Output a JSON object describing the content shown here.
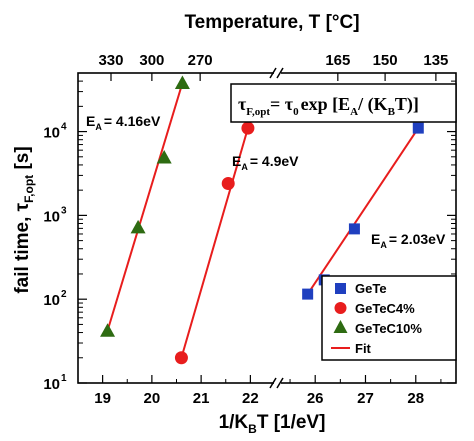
{
  "chart_data": {
    "type": "scatter",
    "title": "",
    "xlabel": "1/KBT [1/eV]",
    "ylabel": "fail time, τF,opt [s]",
    "x2label": "Temperature, T [°C]",
    "yscale": "log",
    "xlim": [
      18.5,
      28.8
    ],
    "ylim": [
      10,
      50000
    ],
    "x_break": [
      22.5,
      25.3
    ],
    "x_ticks": [
      19,
      20,
      21,
      22,
      26,
      27,
      28
    ],
    "x2_ticks": [
      {
        "label": "330",
        "x": 19.17
      },
      {
        "label": "300",
        "x": 20.0
      },
      {
        "label": "270",
        "x": 20.98
      },
      {
        "label": "165",
        "x": 26.45
      },
      {
        "label": "150",
        "x": 27.39
      },
      {
        "label": "135",
        "x": 28.4
      }
    ],
    "y_ticks": [
      {
        "base": "10",
        "exp": "1",
        "value": 10
      },
      {
        "base": "10",
        "exp": "2",
        "value": 100
      },
      {
        "base": "10",
        "exp": "3",
        "value": 1000
      },
      {
        "base": "10",
        "exp": "4",
        "value": 10000
      }
    ],
    "series": [
      {
        "name": "GeTe",
        "marker": "square",
        "color": "#1f3fbf",
        "x": [
          25.85,
          26.18,
          26.78,
          28.05
        ],
        "y": [
          115,
          170,
          690,
          11000
        ]
      },
      {
        "name": "GeTeC4%",
        "marker": "circle",
        "color": "#e81d1d",
        "x": [
          20.6,
          21.55,
          21.95
        ],
        "y": [
          20,
          2400,
          11000
        ]
      },
      {
        "name": "GeTeC10%",
        "marker": "triangle",
        "color": "#2e6b12",
        "x": [
          19.1,
          19.72,
          20.25,
          20.62
        ],
        "y": [
          42,
          720,
          4900,
          38000
        ]
      }
    ],
    "fits": [
      {
        "name": "Fit",
        "x": [
          19.1,
          20.62
        ],
        "y": [
          42,
          38000
        ]
      },
      {
        "name": "Fit",
        "x": [
          20.6,
          21.95
        ],
        "y": [
          20,
          11000
        ]
      },
      {
        "name": "Fit",
        "x": [
          25.85,
          28.05
        ],
        "y": [
          115,
          11000
        ]
      }
    ],
    "fit_color": "#e81d1d",
    "legend": {
      "placement": "bottom-right",
      "entries": [
        "GeTe",
        "GeTeC4%",
        "GeTeC10%",
        "Fit"
      ]
    },
    "annotations": {
      "ea1": {
        "base": "E",
        "sub": "A",
        "rest": "= 4.16eV"
      },
      "ea2": {
        "base": "E",
        "sub": "A",
        "rest": "= 4.9eV"
      },
      "ea3": {
        "base": "E",
        "sub": "A",
        "rest": "= 2.03eV"
      }
    },
    "formula": {
      "tau1": "τ",
      "sub1": "F,opt",
      "eq": "= τ",
      "sub0": "0",
      "exp": "exp [E",
      "subA": "A",
      "slash": "/ (K",
      "subB": "B",
      "tail": "T)]"
    }
  }
}
